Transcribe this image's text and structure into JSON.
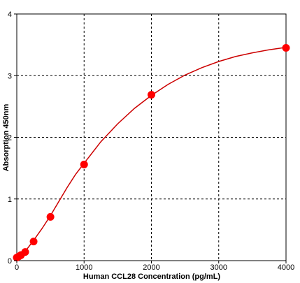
{
  "chart_data": {
    "type": "scatter",
    "xlabel": "Human CCL28 Concentration (pg/mL)",
    "ylabel": "Absorption 450nm",
    "xlim": [
      0,
      4000
    ],
    "ylim": [
      0,
      4
    ],
    "x_ticks": [
      "0",
      "1000",
      "2000",
      "3000",
      "4000"
    ],
    "y_ticks": [
      "0",
      "1",
      "2",
      "3",
      "4"
    ],
    "grid": true,
    "grid_style": "dashed",
    "series": [
      {
        "points": [
          {
            "x": 0,
            "y": 0.05
          },
          {
            "x": 31.25,
            "y": 0.07
          },
          {
            "x": 62.5,
            "y": 0.09
          },
          {
            "x": 125,
            "y": 0.14
          },
          {
            "x": 250,
            "y": 0.31
          },
          {
            "x": 500,
            "y": 0.71
          },
          {
            "x": 1000,
            "y": 1.56
          },
          {
            "x": 2000,
            "y": 2.69
          },
          {
            "x": 4000,
            "y": 3.45
          }
        ],
        "fit_curve": {
          "x": [
            0,
            125,
            250,
            375,
            500,
            625,
            750,
            875,
            1000,
            1250,
            1500,
            1750,
            2000,
            2250,
            2500,
            2750,
            3000,
            3250,
            3500,
            3750,
            4000
          ],
          "y": [
            0.04,
            0.15,
            0.33,
            0.52,
            0.73,
            0.96,
            1.19,
            1.4,
            1.58,
            1.93,
            2.22,
            2.47,
            2.68,
            2.86,
            3.01,
            3.13,
            3.23,
            3.31,
            3.37,
            3.42,
            3.46
          ]
        }
      }
    ],
    "colors": {
      "series": "#ff0000",
      "curve": "#cc0000",
      "grid": "#000000",
      "background": "#ffffff"
    }
  }
}
